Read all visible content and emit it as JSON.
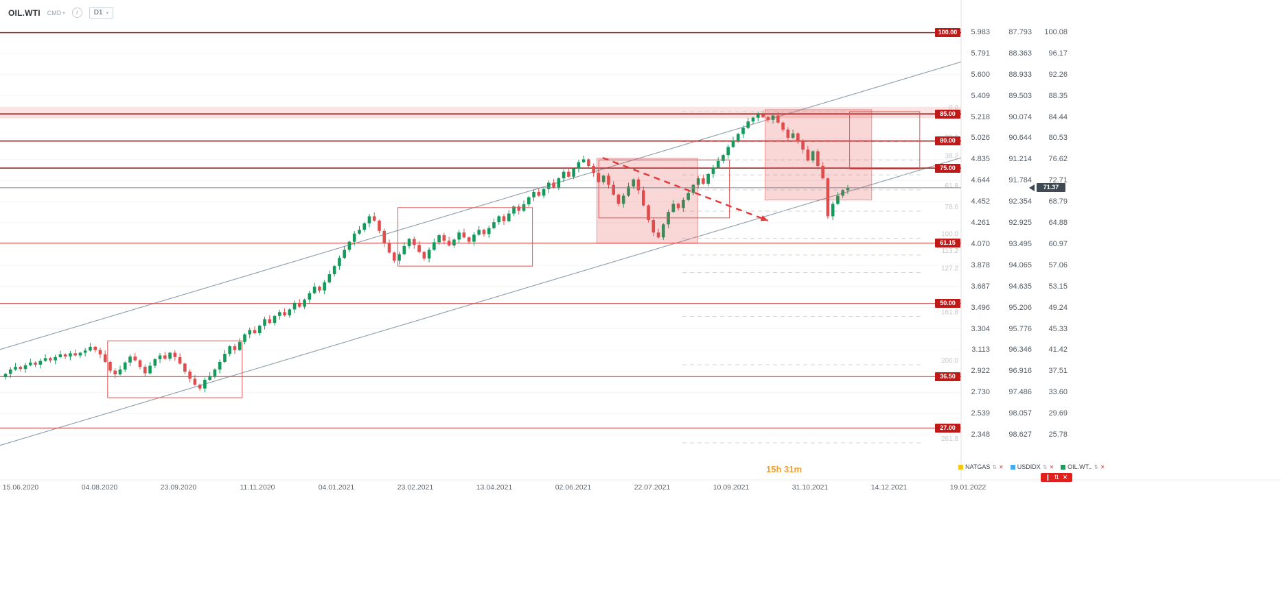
{
  "header": {
    "symbol": "OIL.WTI",
    "market": "CMD",
    "timeframe": "D1"
  },
  "icons": {
    "caret": "▾",
    "info": "i",
    "sort": "⇅",
    "close": "✕",
    "candle": "❙",
    "arrow_left": "◀"
  },
  "current_price": {
    "value": "71.37"
  },
  "countdown": "15h 31m",
  "legend": [
    {
      "label": "NATGAS",
      "color": "#f5c518"
    },
    {
      "label": "USDIDX",
      "color": "#49a9f0"
    },
    {
      "label": "OIL.WT..",
      "color": "#1d9d5c"
    }
  ],
  "active_badge": {
    "icons": [
      "❙",
      "⇅",
      "✕"
    ],
    "color": "#e01f1f"
  },
  "axes": {
    "x_labels": [
      "15.06.2020",
      "04.08.2020",
      "23.09.2020",
      "11.11.2020",
      "04.01.2021",
      "23.02.2021",
      "13.04.2021",
      "02.06.2021",
      "22.07.2021",
      "10.09.2021",
      "31.10.2021",
      "14.12.2021",
      "19.01.2022"
    ],
    "scales": [
      {
        "name": "natgas-price-scale",
        "values": [
          "5.983",
          "5.791",
          "5.600",
          "5.409",
          "5.218",
          "5.026",
          "4.835",
          "4.644",
          "4.452",
          "4.261",
          "4.070",
          "3.878",
          "3.687",
          "3.496",
          "3.304",
          "3.113",
          "2.922",
          "2.730",
          "2.539",
          "2.348"
        ]
      },
      {
        "name": "usdidx-price-scale",
        "values": [
          "87.793",
          "88.363",
          "88.933",
          "89.503",
          "90.074",
          "90.644",
          "91.214",
          "91.784",
          "92.354",
          "92.925",
          "93.495",
          "94.065",
          "94.635",
          "95.206",
          "95.776",
          "96.346",
          "96.916",
          "97.486",
          "98.057",
          "98.627"
        ]
      },
      {
        "name": "oilwti-price-scale",
        "values": [
          "100.08",
          "96.17",
          "92.26",
          "88.35",
          "84.44",
          "80.53",
          "76.62",
          "72.71",
          "68.79",
          "64.88",
          "60.97",
          "57.06",
          "53.15",
          "49.24",
          "45.33",
          "41.42",
          "37.51",
          "33.60",
          "29.69",
          "25.78"
        ]
      }
    ]
  },
  "chart_data": {
    "type": "candlestick",
    "title": "OIL.WTI D1",
    "x_range": [
      "15.06.2020",
      "19.01.2022"
    ],
    "y_axis_price_top": 100.08,
    "y_axis_price_bottom": 25.78,
    "current_price": 71.37,
    "first_open": 36.4,
    "render_hint": "open=previous close; wick=+/-0.2..0.7 deterministic",
    "closes": [
      37.0,
      37.8,
      38.3,
      37.9,
      38.6,
      39.1,
      38.7,
      39.4,
      39.9,
      39.5,
      40.1,
      40.6,
      40.2,
      40.8,
      40.4,
      40.9,
      41.3,
      42.0,
      41.4,
      40.6,
      39.2,
      37.6,
      36.9,
      37.8,
      39.1,
      40.2,
      39.5,
      38.3,
      37.1,
      38.5,
      39.7,
      40.4,
      39.8,
      40.9,
      40.1,
      38.9,
      37.4,
      36.1,
      35.0,
      34.3,
      35.9,
      36.6,
      37.8,
      39.2,
      40.7,
      42.1,
      41.4,
      42.9,
      44.3,
      45.1,
      44.5,
      45.9,
      47.1,
      46.4,
      47.7,
      48.4,
      47.8,
      48.9,
      50.1,
      49.4,
      50.7,
      51.9,
      53.1,
      52.4,
      53.9,
      55.4,
      56.9,
      58.4,
      59.9,
      61.4,
      62.9,
      63.6,
      64.8,
      66.1,
      65.3,
      63.4,
      61.1,
      59.4,
      57.9,
      59.1,
      60.6,
      61.9,
      60.8,
      59.5,
      58.3,
      59.9,
      61.3,
      62.6,
      61.6,
      60.7,
      61.8,
      63.1,
      62.2,
      61.4,
      62.7,
      63.6,
      62.8,
      63.9,
      65.0,
      66.1,
      65.2,
      66.6,
      67.9,
      67.1,
      68.3,
      69.6,
      70.6,
      69.9,
      71.1,
      72.3,
      71.4,
      73.1,
      74.3,
      73.4,
      74.9,
      76.1,
      76.6,
      75.4,
      74.1,
      72.4,
      73.6,
      71.9,
      70.1,
      68.4,
      69.9,
      71.6,
      72.9,
      70.9,
      68.1,
      65.4,
      63.1,
      62.2,
      64.6,
      66.9,
      68.4,
      67.6,
      69.1,
      70.4,
      71.9,
      73.1,
      72.1,
      73.9,
      75.1,
      76.3,
      77.4,
      78.9,
      80.1,
      81.3,
      82.4,
      83.6,
      84.3,
      84.9,
      84.4,
      83.9,
      84.7,
      83.4,
      82.1,
      80.6,
      81.4,
      79.9,
      78.4,
      76.4,
      78.1,
      75.4,
      73.1,
      66.1,
      68.4,
      69.9,
      70.9,
      71.4
    ],
    "horizontal_lines": [
      {
        "label": "100.00",
        "price": 100.0,
        "style": "major"
      },
      {
        "label": "85.00",
        "price": 85.0,
        "style": "major"
      },
      {
        "label": "80.00",
        "price": 80.0,
        "style": "major"
      },
      {
        "label": "75.00",
        "price": 75.0,
        "style": "major"
      },
      {
        "label": "61.15",
        "price": 61.15,
        "style": "minor"
      },
      {
        "label": "50.00",
        "price": 50.0,
        "style": "minor"
      },
      {
        "label": "36.50",
        "price": 36.5,
        "style": "minor"
      },
      {
        "label": "27.00",
        "price": 27.0,
        "style": "minor"
      }
    ],
    "zone": {
      "name": "supply-zone-85",
      "price": [
        86.3,
        84.2
      ]
    },
    "dashed_line": {
      "name": "dashed-resistance-80",
      "price": 80.0,
      "x": [
        0.704,
        0.961
      ]
    },
    "fibonacci": {
      "high": 85.41,
      "low": 62.05,
      "range_x": [
        0.71,
        0.961
      ],
      "levels": [
        "0.0",
        "23.6",
        "38.2",
        "50.0",
        "61.8",
        "78.6",
        "100.0",
        "113.2",
        "127.2",
        "161.8",
        "200.0",
        "261.8"
      ]
    },
    "trendlines": [
      {
        "name": "channel-upper-line",
        "x": [
          0,
          1
        ],
        "price": [
          41.5,
          94.6
        ],
        "style": "solid",
        "color": "#93a3ae",
        "layer": "back"
      },
      {
        "name": "channel-lower-line",
        "x": [
          0,
          1
        ],
        "price": [
          23.8,
          76.9
        ],
        "style": "solid",
        "color": "#93a3ae",
        "layer": "back"
      },
      {
        "name": "downtrend-line",
        "x": [
          0.627,
          0.799
        ],
        "price": [
          76.9,
          65.3
        ],
        "style": "dashed",
        "color": "#e23b3b",
        "layer": "front",
        "arrow": true
      }
    ],
    "boxes": [
      {
        "name": "consolidation-box-2020",
        "x": [
          0.112,
          0.252
        ],
        "price": [
          43.1,
          32.6
        ],
        "filled": false
      },
      {
        "name": "consolidation-box-q1-2021",
        "x": [
          0.414,
          0.554
        ],
        "price": [
          67.7,
          56.9
        ],
        "filled": false
      },
      {
        "name": "correction-zone-jul-2021",
        "x": [
          0.621,
          0.726
        ],
        "price": [
          76.8,
          61.1
        ],
        "filled": true
      },
      {
        "name": "correction-box-jul-2021",
        "x": [
          0.623,
          0.759
        ],
        "price": [
          76.5,
          65.8
        ],
        "filled": false
      },
      {
        "name": "correction-zone-nov-2021",
        "x": [
          0.796,
          0.907
        ],
        "price": [
          85.8,
          69.1
        ],
        "filled": true
      },
      {
        "name": "projection-box-dec-2021",
        "x": [
          0.884,
          0.957
        ],
        "price": [
          85.4,
          74.8
        ],
        "filled": false
      }
    ],
    "colors": {
      "up": "#159a5b",
      "down": "#df4e4e",
      "major_line": "#a81d1d",
      "minor_line": "#cf4d4d",
      "badge": "#bf1a1a",
      "current_badge": "#3f4a54",
      "fib": "#d3d3d3"
    }
  }
}
